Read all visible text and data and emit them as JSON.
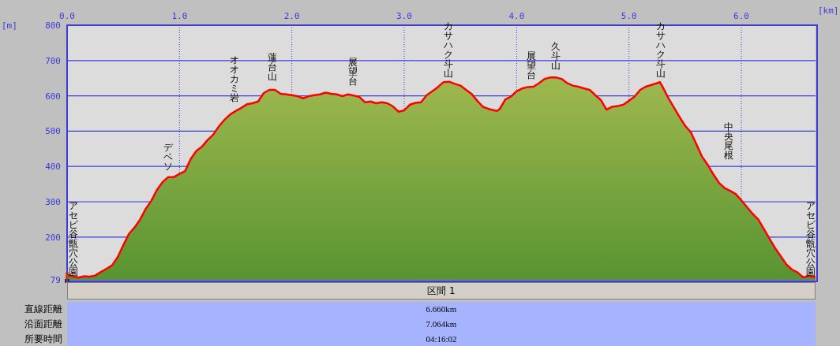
{
  "chart_data": {
    "type": "area",
    "xlabel": "[km]",
    "ylabel": "[m]",
    "xlim": [
      0,
      6.66
    ],
    "xticks": [
      {
        "value": 0,
        "label": "0.0"
      },
      {
        "value": 1,
        "label": "1.0"
      },
      {
        "value": 2,
        "label": "2.0"
      },
      {
        "value": 3,
        "label": "3.0"
      },
      {
        "value": 4,
        "label": "4.0"
      },
      {
        "value": 5,
        "label": "5.0"
      },
      {
        "value": 6,
        "label": "6.0"
      }
    ],
    "ylim": [
      79,
      800
    ],
    "yticks": [
      79,
      200,
      300,
      400,
      500,
      600,
      700,
      800
    ],
    "grid": true,
    "x": [
      0,
      0.05,
      0.1,
      0.15,
      0.2,
      0.25,
      0.3,
      0.35,
      0.4,
      0.45,
      0.5,
      0.55,
      0.6,
      0.65,
      0.7,
      0.75,
      0.8,
      0.85,
      0.9,
      0.95,
      1.0,
      1.05,
      1.1,
      1.15,
      1.2,
      1.25,
      1.3,
      1.35,
      1.4,
      1.45,
      1.5,
      1.55,
      1.6,
      1.65,
      1.7,
      1.75,
      1.8,
      1.85,
      1.9,
      1.95,
      2.0,
      2.05,
      2.1,
      2.15,
      2.2,
      2.25,
      2.3,
      2.35,
      2.4,
      2.45,
      2.5,
      2.55,
      2.6,
      2.65,
      2.7,
      2.75,
      2.8,
      2.85,
      2.9,
      2.95,
      3.0,
      3.05,
      3.1,
      3.15,
      3.2,
      3.25,
      3.3,
      3.35,
      3.4,
      3.45,
      3.5,
      3.55,
      3.6,
      3.65,
      3.7,
      3.75,
      3.8,
      3.825,
      3.85,
      3.9,
      3.95,
      4.0,
      4.05,
      4.1,
      4.15,
      4.2,
      4.25,
      4.3,
      4.35,
      4.4,
      4.45,
      4.5,
      4.55,
      4.6,
      4.65,
      4.7,
      4.75,
      4.8,
      4.85,
      4.9,
      4.95,
      5.0,
      5.05,
      5.1,
      5.15,
      5.2,
      5.25,
      5.275,
      5.3,
      5.35,
      5.4,
      5.45,
      5.5,
      5.55,
      5.6,
      5.65,
      5.7,
      5.75,
      5.8,
      5.85,
      5.9,
      5.95,
      6.0,
      6.05,
      6.1,
      6.15,
      6.2,
      6.25,
      6.3,
      6.35,
      6.4,
      6.45,
      6.5,
      6.55,
      6.6,
      6.66
    ],
    "series": [
      {
        "color": "#ff0000",
        "values": [
          93,
          89,
          85,
          89,
          88,
          91,
          101,
          110,
          120,
          143,
          177,
          209,
          227,
          250,
          280,
          303,
          334,
          356,
          370,
          370,
          379,
          387,
          421,
          444,
          456,
          475,
          490,
          513,
          532,
          547,
          557,
          566,
          576,
          579,
          584,
          608,
          617,
          617,
          606,
          604,
          602,
          599,
          593,
          599,
          602,
          604,
          609,
          606,
          604,
          599,
          604,
          601,
          597,
          582,
          584,
          579,
          582,
          579,
          570,
          555,
          559,
          575,
          580,
          582,
          602,
          613,
          625,
          639,
          640,
          634,
          629,
          617,
          605,
          586,
          569,
          563,
          559,
          557,
          563,
          590,
          598,
          613,
          621,
          625,
          626,
          636,
          648,
          652,
          652,
          648,
          636,
          629,
          626,
          621,
          617,
          602,
          588,
          561,
          569,
          571,
          575,
          586,
          598,
          617,
          626,
          631,
          636,
          639,
          625,
          594,
          567,
          540,
          515,
          497,
          463,
          428,
          405,
          378,
          354,
          339,
          331,
          322,
          304,
          285,
          266,
          250,
          223,
          196,
          169,
          146,
          123,
          108,
          100,
          86,
          90,
          86
        ]
      }
    ],
    "annotations": [
      "アセビ谷甑穴公園",
      "デベソ",
      "オオカミ岩",
      "蓮台山",
      "展望台",
      "カサハク斗山",
      "展望台",
      "久斗山",
      "カサハク斗山",
      "中央尾根",
      "アセビ谷甑穴公園",
      "区間 1",
      "直線距離",
      "6.660km",
      "沿面距離",
      "7.064km",
      "所要時間",
      "04:16:02"
    ]
  }
}
